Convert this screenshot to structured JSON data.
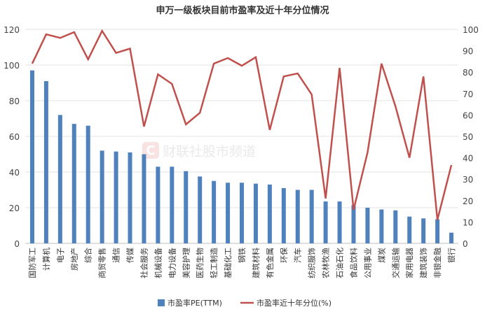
{
  "chart_data": {
    "type": "bar+line",
    "title": "申万一级板块目前市盈率及近十年分位情况",
    "categories": [
      "国防军工",
      "计算机",
      "电子",
      "房地产",
      "综合",
      "商贸零售",
      "通信",
      "传媒",
      "社会服务",
      "机械设备",
      "电力设备",
      "美容护理",
      "医药生物",
      "轻工制造",
      "基础化工",
      "钢铁",
      "建筑材料",
      "有色金属",
      "环保",
      "汽车",
      "纺织服饰",
      "农林牧渔",
      "石油石化",
      "食品饮料",
      "公用事业",
      "煤炭",
      "交通运输",
      "家用电器",
      "建筑装饰",
      "非银金融",
      "银行"
    ],
    "series": [
      {
        "name": "市盈率PE(TTM)",
        "type": "bar",
        "axis": "left",
        "color": "#4f81bd",
        "values": [
          97,
          91,
          72,
          67,
          66,
          52,
          51.5,
          51,
          50,
          43,
          43,
          40.5,
          37.5,
          35,
          34,
          34,
          33.5,
          33,
          31,
          30,
          30,
          23.5,
          23.5,
          21.5,
          20,
          19,
          18.5,
          15,
          14,
          13.5,
          6
        ]
      },
      {
        "name": "市盈率近十年分位(%)",
        "type": "line",
        "axis": "right",
        "color": "#c0504d",
        "values": [
          84,
          97.7,
          96,
          98.7,
          86,
          99.3,
          89,
          91,
          54.6,
          79,
          74.5,
          55.6,
          61,
          84,
          86.6,
          83,
          87,
          53,
          78,
          79.4,
          69.6,
          21,
          82,
          15.7,
          42.5,
          84,
          64,
          40,
          78,
          11,
          36.6
        ]
      }
    ],
    "left_axis": {
      "range": [
        0,
        120
      ],
      "ticks": [
        0,
        20,
        40,
        60,
        80,
        100,
        120
      ]
    },
    "right_axis": {
      "range": [
        0,
        100
      ],
      "ticks": [
        0,
        10,
        20,
        30,
        40,
        50,
        60,
        70,
        80,
        90,
        100
      ]
    },
    "grid": true,
    "legend": "bottom",
    "watermark": "财联社股市频道"
  }
}
